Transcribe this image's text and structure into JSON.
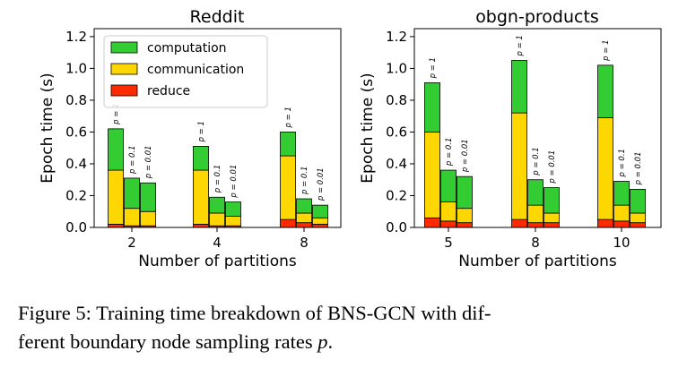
{
  "chart_data": [
    {
      "type": "bar",
      "stacked": true,
      "title": "Reddit",
      "xlabel": "Number of partitions",
      "ylabel": "Epoch time (s)",
      "ylim": [
        0,
        1.25
      ],
      "yticks": [
        "0.0",
        "0.2",
        "0.4",
        "0.6",
        "0.8",
        "1.0",
        "1.2"
      ],
      "categories": [
        "2",
        "4",
        "8"
      ],
      "bar_labels": [
        "p = 1",
        "p = 0.1",
        "p = 0.01"
      ],
      "legend": {
        "position": "upper-left",
        "entries": [
          "computation",
          "communication",
          "reduce"
        ]
      },
      "series": [
        {
          "name": "reduce",
          "color": "#ff2a00",
          "values": [
            [
              0.02,
              0.01,
              0.01
            ],
            [
              0.02,
              0.01,
              0.01
            ],
            [
              0.05,
              0.03,
              0.02
            ]
          ]
        },
        {
          "name": "communication",
          "color": "#ffd700",
          "values": [
            [
              0.34,
              0.11,
              0.09
            ],
            [
              0.34,
              0.08,
              0.06
            ],
            [
              0.4,
              0.06,
              0.04
            ]
          ]
        },
        {
          "name": "computation",
          "color": "#33cc33",
          "values": [
            [
              0.26,
              0.19,
              0.18
            ],
            [
              0.15,
              0.1,
              0.09
            ],
            [
              0.15,
              0.09,
              0.08
            ]
          ]
        }
      ]
    },
    {
      "type": "bar",
      "stacked": true,
      "title": "obgn-products",
      "xlabel": "Number of partitions",
      "ylabel": "Epoch time (s)",
      "ylim": [
        0,
        1.25
      ],
      "yticks": [
        "0.0",
        "0.2",
        "0.4",
        "0.6",
        "0.8",
        "1.0",
        "1.2"
      ],
      "categories": [
        "5",
        "8",
        "10"
      ],
      "bar_labels": [
        "p = 1",
        "p = 0.1",
        "p = 0.01"
      ],
      "series": [
        {
          "name": "reduce",
          "color": "#ff2a00",
          "values": [
            [
              0.06,
              0.04,
              0.03
            ],
            [
              0.05,
              0.03,
              0.03
            ],
            [
              0.05,
              0.04,
              0.03
            ]
          ]
        },
        {
          "name": "communication",
          "color": "#ffd700",
          "values": [
            [
              0.54,
              0.12,
              0.09
            ],
            [
              0.67,
              0.11,
              0.06
            ],
            [
              0.64,
              0.1,
              0.06
            ]
          ]
        },
        {
          "name": "computation",
          "color": "#33cc33",
          "values": [
            [
              0.31,
              0.2,
              0.2
            ],
            [
              0.33,
              0.16,
              0.16
            ],
            [
              0.33,
              0.15,
              0.15
            ]
          ]
        }
      ]
    }
  ],
  "caption": {
    "line1": "Figure 5: Training time breakdown of BNS-GCN with dif-",
    "line2_text": "ferent boundary node sampling rates ",
    "line2_var": "p",
    "line2_end": "."
  }
}
